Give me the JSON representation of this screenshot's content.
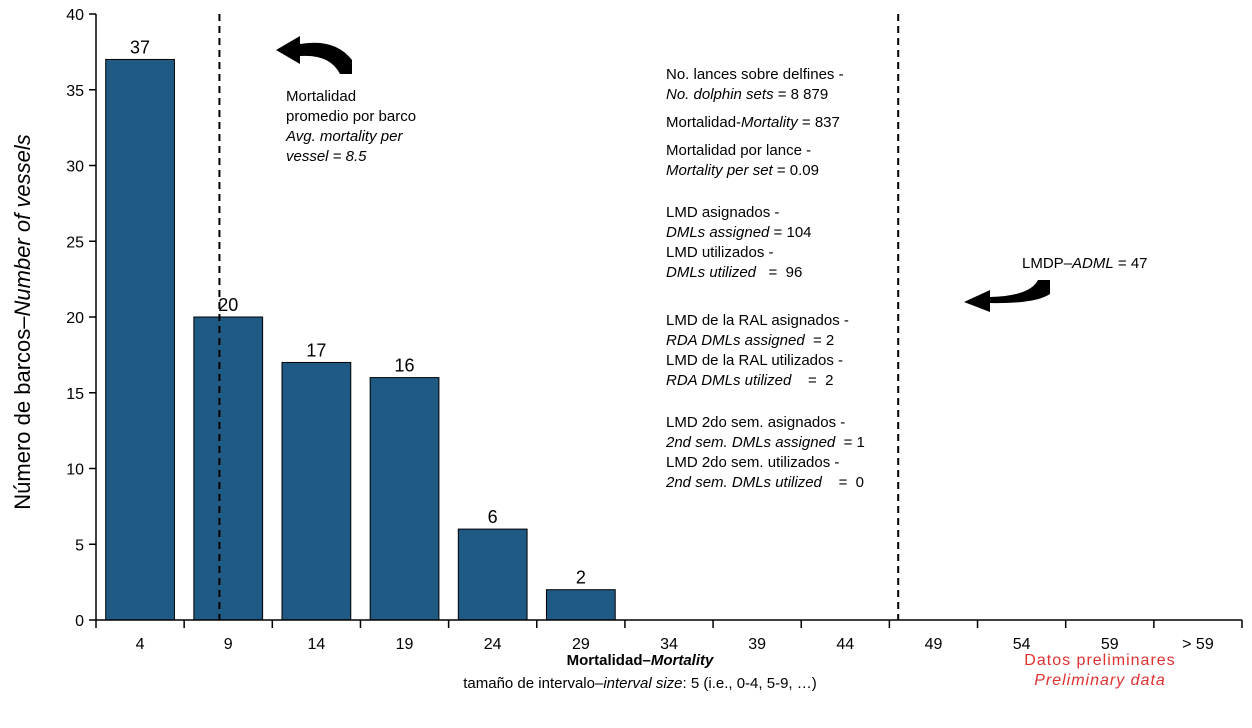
{
  "chart_data": {
    "type": "bar",
    "categories": [
      "4",
      "9",
      "14",
      "19",
      "24",
      "29",
      "34",
      "39",
      "44",
      "49",
      "54",
      "59",
      "> 59"
    ],
    "values": [
      37,
      20,
      17,
      16,
      6,
      2,
      0,
      0,
      0,
      0,
      0,
      0,
      0
    ],
    "data_labels": [
      "37",
      "20",
      "17",
      "16",
      "6",
      "2",
      "",
      "",
      "",
      "",
      "",
      "",
      ""
    ],
    "ylabel_es": "Número de barcos",
    "ylabel_sep": "–",
    "ylabel_en": "Number of vessels",
    "ylim": [
      0,
      40
    ],
    "yticks": [
      "0",
      "5",
      "10",
      "15",
      "20",
      "25",
      "30",
      "35",
      "40"
    ],
    "bar_color": "#1f5a85",
    "grid": false,
    "reference_lines": [
      {
        "name": "avg_mortality_per_vessel",
        "x": 8.5
      },
      {
        "name": "adml",
        "x": 47
      }
    ]
  },
  "xlabel": {
    "es": "Mortalidad",
    "sep": "–",
    "en": "Mortality",
    "sub_es": "tamaño de intervalo",
    "sub_sep": "–",
    "sub_en": "interval size",
    "sub_rest": ": 5 (i.e., 0-4, 5-9, …)"
  },
  "avg_annotation": {
    "line1": "Mortalidad",
    "line2": "promedio por barco",
    "line3": "Avg. mortality per",
    "line4": "vessel = 8.5"
  },
  "stats": {
    "sets_es": "No. lances sobre delfines -",
    "sets_en": "No. dolphin sets",
    "sets_val": " = 8 879",
    "mort_es": "Mortalidad-",
    "mort_en": "Mortality",
    "mort_val": " = 837",
    "mps_es": "Mortalidad por lance -",
    "mps_en": "Mortality per set",
    "mps_val": " = 0.09",
    "dml_assigned_es": "LMD asignados -",
    "dml_assigned_en": "DMLs assigned",
    "dml_assigned_val": "  = 104",
    "dml_utilized_es": "LMD utilizados -",
    "dml_utilized_en": "DMLs utilized",
    "dml_utilized_val": "   =  96",
    "rda_assigned_es": "LMD de la RAL asignados -",
    "rda_assigned_en": "RDA DMLs assigned",
    "rda_assigned_val": "  = 2",
    "rda_utilized_es": "LMD de la RAL utilizados -",
    "rda_utilized_en": "RDA DMLs utilized",
    "rda_utilized_val": "    =  2",
    "sem_assigned_es": "LMD 2do sem. asignados -",
    "sem_assigned_en": "2nd sem. DMLs assigned",
    "sem_assigned_val": "  = 1",
    "sem_utilized_es": "LMD 2do sem. utilizados -",
    "sem_utilized_en": "2nd sem. DMLs utilized",
    "sem_utilized_val": "    =  0"
  },
  "adml_annotation": {
    "es": "LMDP",
    "sep": "–",
    "en": "ADML",
    "val": " = 47"
  },
  "preliminary": {
    "es": "Datos preliminares",
    "en": "Preliminary data"
  }
}
